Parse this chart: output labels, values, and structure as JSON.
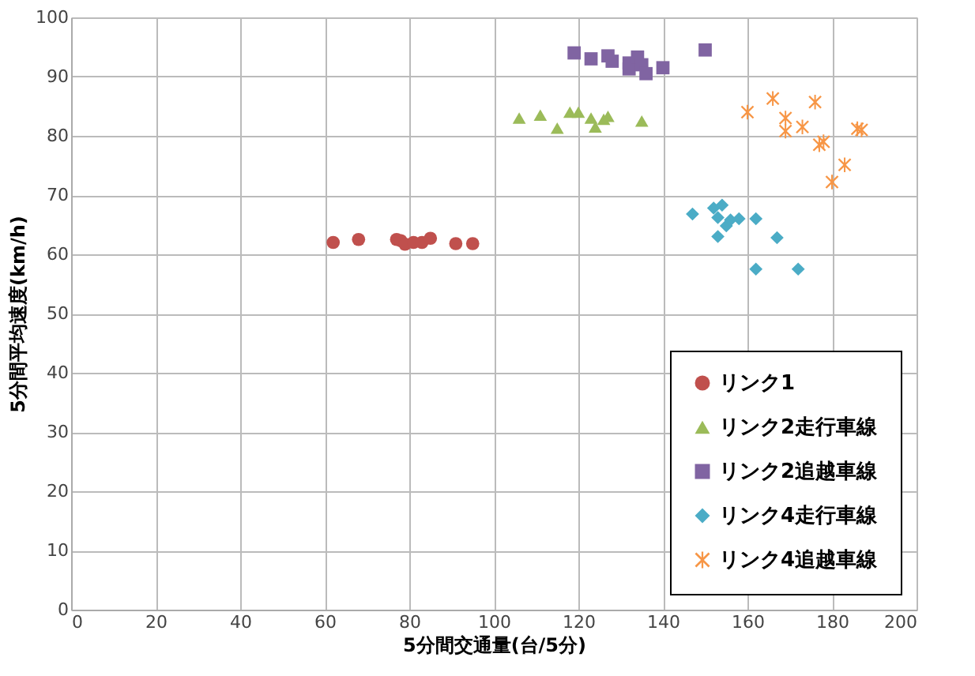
{
  "chart_data": {
    "type": "scatter",
    "xlabel": "5分間交通量(台/5分)",
    "ylabel": "5分間平均速度(km/h)",
    "xlim": [
      0,
      200
    ],
    "xticks": [
      0,
      20,
      40,
      60,
      80,
      100,
      120,
      140,
      160,
      180,
      200
    ],
    "ylim": [
      0,
      100
    ],
    "yticks": [
      0,
      10,
      20,
      30,
      40,
      50,
      60,
      70,
      80,
      90,
      100
    ],
    "grid": true,
    "legend": "bottom right",
    "series": [
      {
        "name": "リンク1",
        "color": "#c0504d",
        "marker": "circle",
        "x": [
          62,
          68,
          77,
          78,
          79,
          81,
          83,
          85,
          91,
          95
        ],
        "values": [
          62,
          62.5,
          62.5,
          62.3,
          61.7,
          62,
          62,
          62.7,
          61.8,
          61.8
        ]
      },
      {
        "name": "リンク2走行車線",
        "color": "#9bbb59",
        "marker": "triangle",
        "x": [
          106,
          111,
          115,
          118,
          120,
          123,
          124,
          126,
          127,
          135
        ],
        "values": [
          83,
          83.5,
          81.3,
          84,
          84,
          83,
          81.5,
          82.8,
          83.3,
          82.5
        ]
      },
      {
        "name": "リンク2追越車線",
        "color": "#8064a2",
        "marker": "square",
        "x": [
          119,
          123,
          127,
          128,
          132,
          132,
          134,
          135,
          136,
          140,
          150
        ],
        "values": [
          94,
          93,
          93.5,
          92.6,
          91.3,
          92.3,
          93.3,
          92,
          90.5,
          91.5,
          94.5
        ]
      },
      {
        "name": "リンク4走行車線",
        "color": "#4bacc6",
        "marker": "diamond",
        "x": [
          147,
          152,
          153,
          153,
          154,
          155,
          156,
          158,
          162,
          162,
          167,
          172
        ],
        "values": [
          66.8,
          67.8,
          66.2,
          63,
          68.3,
          64.8,
          65.8,
          66,
          66,
          57.5,
          62.8,
          57.5
        ]
      },
      {
        "name": "リンク4追越車線",
        "color": "#f79646",
        "marker": "star",
        "x": [
          160,
          166,
          169,
          169,
          173,
          176,
          177,
          178,
          180,
          183,
          186,
          187
        ],
        "values": [
          84,
          86.3,
          83,
          80.8,
          81.5,
          85.7,
          78.5,
          79,
          72.2,
          75.1,
          81.2,
          81
        ]
      }
    ]
  }
}
